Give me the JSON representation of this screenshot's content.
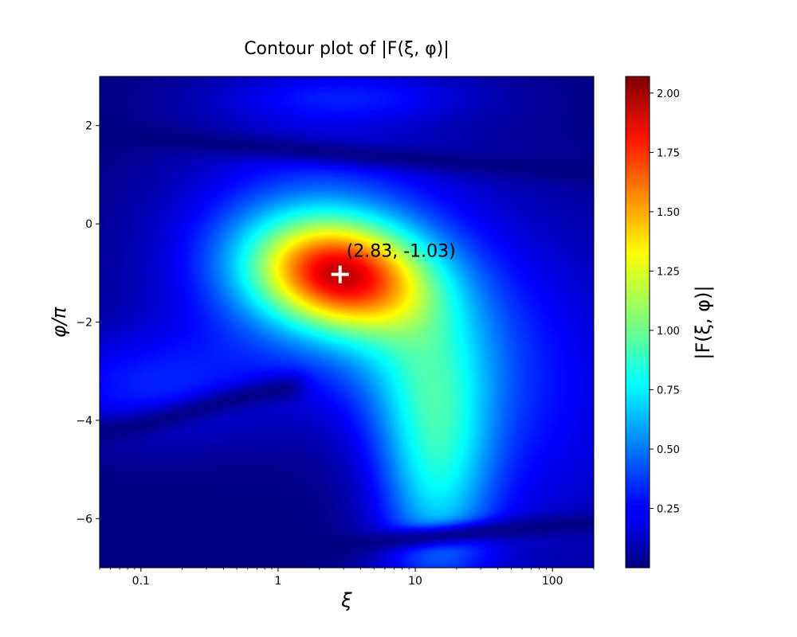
{
  "chart_data": {
    "type": "heatmap",
    "title": "Contour plot of |F(ξ, φ)|",
    "xlabel": "ξ",
    "ylabel": "φ/π",
    "x_scale": "log",
    "xlim": [
      0.05,
      200
    ],
    "ylim": [
      -7,
      3
    ],
    "x_ticks": [
      {
        "value": 0.1,
        "label": "0.1"
      },
      {
        "value": 1,
        "label": "1"
      },
      {
        "value": 10,
        "label": "10"
      },
      {
        "value": 100,
        "label": "100"
      }
    ],
    "y_ticks": [
      {
        "value": 2,
        "label": "2"
      },
      {
        "value": 0,
        "label": "0"
      },
      {
        "value": -2,
        "label": "−2"
      },
      {
        "value": -4,
        "label": "−4"
      },
      {
        "value": -6,
        "label": "−6"
      }
    ],
    "colorbar": {
      "label": "|F(ξ, φ)|",
      "colormap": "jet",
      "range": [
        0,
        2.07
      ],
      "ticks": [
        {
          "value": 0.25,
          "label": "0.25"
        },
        {
          "value": 0.5,
          "label": "0.50"
        },
        {
          "value": 0.75,
          "label": "0.75"
        },
        {
          "value": 1.0,
          "label": "1.00"
        },
        {
          "value": 1.25,
          "label": "1.25"
        },
        {
          "value": 1.5,
          "label": "1.50"
        },
        {
          "value": 1.75,
          "label": "1.75"
        },
        {
          "value": 2.0,
          "label": "2.00"
        }
      ]
    },
    "maximum": {
      "x": 2.83,
      "y": -1.03,
      "label": "(2.83, -1.03)",
      "marker": "+",
      "marker_color": "#ffffff"
    },
    "surface_samples": [
      {
        "x": 2.83,
        "y": -1.03,
        "value": 2.05
      },
      {
        "x": 1.2,
        "y": -0.5,
        "value": 1.6
      },
      {
        "x": 8,
        "y": -2.2,
        "value": 1.5
      },
      {
        "x": 0.3,
        "y": -0.5,
        "value": 0.75
      },
      {
        "x": 15,
        "y": -5.0,
        "value": 1.05
      },
      {
        "x": 40,
        "y": -5.5,
        "value": 0.75
      },
      {
        "x": 100,
        "y": -3.0,
        "value": 0.45
      },
      {
        "x": 0.1,
        "y": -3.3,
        "value": 0.3
      },
      {
        "x": 1.0,
        "y": -4.0,
        "value": 0.02
      },
      {
        "x": 0.3,
        "y": 2.0,
        "value": 0.05
      },
      {
        "x": 100,
        "y": 1.2,
        "value": 0.03
      },
      {
        "x": 3,
        "y": 2.5,
        "value": 0.3
      },
      {
        "x": 1.0,
        "y": -6.8,
        "value": 0.02
      },
      {
        "x": 0.08,
        "y": -6.0,
        "value": 0.12
      }
    ]
  }
}
